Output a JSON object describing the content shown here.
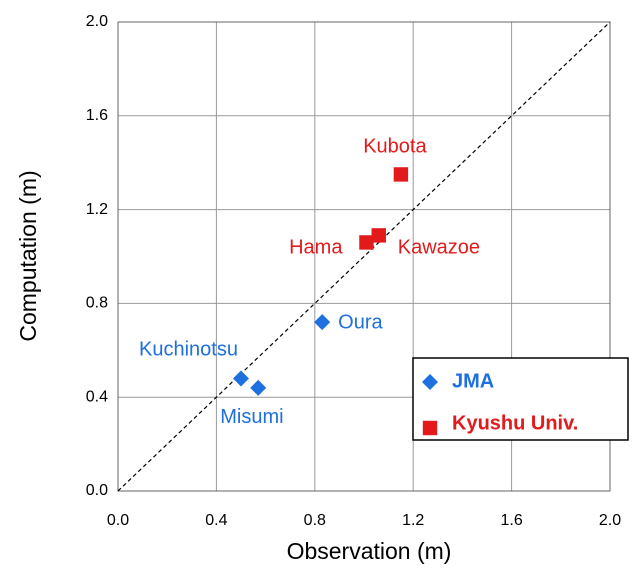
{
  "chart_data": {
    "type": "scatter",
    "xlabel": "Observation (m)",
    "ylabel": "Computation (m)",
    "xlim": [
      0,
      2
    ],
    "ylim": [
      0,
      2
    ],
    "xticks": [
      {
        "value": 0,
        "label": "0.0"
      },
      0.4,
      0.8,
      1.2,
      1.6,
      {
        "value": 2,
        "label": "2.0"
      }
    ],
    "yticks": [
      {
        "value": 0,
        "label": "0.0"
      },
      0.4,
      0.8,
      1.2,
      1.6,
      {
        "value": 2,
        "label": "2.0"
      }
    ],
    "grid": true,
    "legend": "lower right",
    "series": [
      {
        "name": "JMA",
        "color": "#1e6fe0",
        "marker": "diamond",
        "labels": [
          "Kuchinotsu",
          "Misumi",
          "Oura"
        ],
        "x": [
          0.5,
          0.57,
          0.83
        ],
        "values": [
          0.48,
          0.44,
          0.72
        ]
      },
      {
        "name": "Kyushu Univ.",
        "color": "#e31a1c",
        "marker": "square",
        "labels": [
          "Kubota",
          "Hama",
          "Kawazoe"
        ],
        "x": [
          1.15,
          1.01,
          1.06
        ],
        "values": [
          1.35,
          1.06,
          1.09
        ]
      }
    ]
  }
}
